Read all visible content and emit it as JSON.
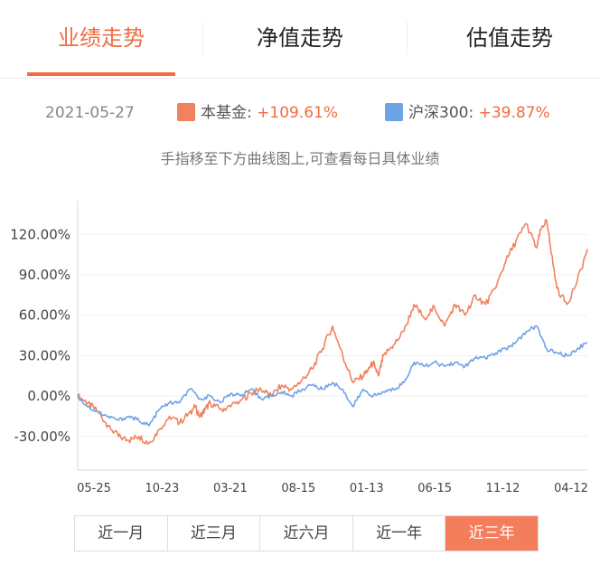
{
  "tabs": [
    {
      "label": "业绩走势",
      "active": true
    },
    {
      "label": "净值走势",
      "active": false
    },
    {
      "label": "估值走势",
      "active": false
    }
  ],
  "summary": {
    "date": "2021-05-27",
    "fund_label": "本基金:",
    "fund_value": "+109.61%",
    "index_label": "沪深300:",
    "index_value": "+39.87%"
  },
  "hint": "手指移至下方曲线图上,可查看每日具体业绩",
  "range_buttons": [
    {
      "label": "近一月",
      "active": false
    },
    {
      "label": "近三月",
      "active": false
    },
    {
      "label": "近六月",
      "active": false
    },
    {
      "label": "近一年",
      "active": false
    },
    {
      "label": "近三年",
      "active": true
    }
  ],
  "colors": {
    "accent": "#f26b43",
    "fund": "#f0825f",
    "index": "#6fa3e8"
  },
  "chart_data": {
    "type": "line",
    "x_ticks": [
      "05-25",
      "10-23",
      "03-21",
      "08-15",
      "01-13",
      "06-15",
      "11-12",
      "04-12"
    ],
    "y_ticks": [
      "120.00%",
      "90.00%",
      "60.00%",
      "30.00%",
      "0.00%",
      "-30.00%"
    ],
    "ylim": [
      -55,
      145
    ],
    "grid": true,
    "series": [
      {
        "name": "本基金",
        "x": [
          0,
          2,
          4,
          6,
          8,
          10,
          12,
          14,
          16,
          18,
          20,
          22,
          23,
          24,
          25,
          26,
          28,
          30,
          32,
          34,
          36,
          38,
          40,
          42,
          44,
          46,
          48,
          50,
          52,
          54,
          56,
          57,
          58,
          59,
          60,
          62,
          64,
          66,
          68,
          70,
          72,
          74,
          76,
          78,
          80,
          82,
          84,
          86,
          88,
          90,
          91,
          92,
          93,
          94,
          96,
          98,
          100
        ],
        "y": [
          0,
          -5,
          -12,
          -22,
          -30,
          -33,
          -30,
          -35,
          -25,
          -15,
          -20,
          -12,
          -8,
          -15,
          -10,
          -5,
          -10,
          -8,
          -3,
          2,
          5,
          0,
          8,
          5,
          12,
          20,
          35,
          52,
          30,
          10,
          15,
          20,
          25,
          15,
          30,
          38,
          48,
          68,
          58,
          66,
          52,
          68,
          60,
          75,
          68,
          80,
          100,
          115,
          128,
          110,
          125,
          130,
          105,
          80,
          68,
          85,
          109
        ]
      },
      {
        "name": "沪深300",
        "x": [
          0,
          2,
          4,
          6,
          8,
          10,
          12,
          14,
          16,
          18,
          20,
          22,
          24,
          26,
          28,
          30,
          32,
          34,
          36,
          38,
          40,
          42,
          44,
          46,
          48,
          50,
          52,
          54,
          56,
          58,
          60,
          62,
          64,
          66,
          68,
          70,
          72,
          74,
          76,
          78,
          80,
          82,
          84,
          86,
          88,
          90,
          92,
          94,
          96,
          98,
          100
        ],
        "y": [
          0,
          -8,
          -12,
          -15,
          -18,
          -15,
          -18,
          -22,
          -10,
          -5,
          -5,
          5,
          -2,
          0,
          -5,
          2,
          0,
          5,
          -2,
          0,
          3,
          0,
          5,
          8,
          5,
          10,
          5,
          -8,
          5,
          0,
          3,
          5,
          10,
          25,
          22,
          25,
          22,
          25,
          22,
          28,
          28,
          32,
          35,
          40,
          48,
          52,
          35,
          32,
          30,
          35,
          40
        ]
      }
    ]
  }
}
